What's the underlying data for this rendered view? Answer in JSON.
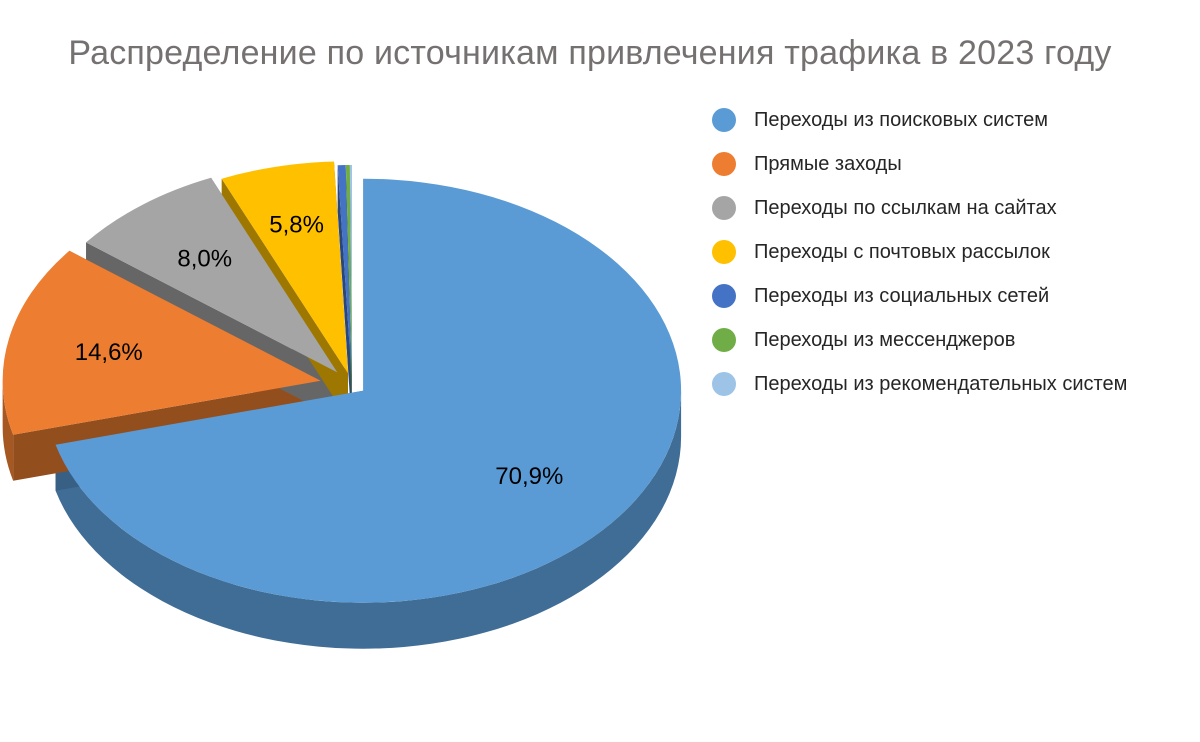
{
  "chart_data": {
    "type": "pie",
    "title": "Распределение по источникам привлечения трафика в 2023 году",
    "series": [
      {
        "name": "",
        "categories": [
          "Переходы из поисковых систем",
          "Прямые заходы",
          "Переходы по ссылкам на сайтах",
          "Переходы с почтовых рассылок",
          "Переходы из социальных сетей",
          "Переходы из мессенджеров",
          "Переходы из рекомендательных систем"
        ],
        "values": [
          70.9,
          14.6,
          8.0,
          5.8,
          0.4,
          0.2,
          0.1
        ],
        "labels": [
          "70,9%",
          "14,6%",
          "8,0%",
          "5,8%",
          "",
          "",
          ""
        ],
        "colors": [
          "#5B9BD5",
          "#ED7D31",
          "#A5A5A5",
          "#FFC000",
          "#4472C4",
          "#70AD47",
          "#9DC3E6"
        ]
      }
    ],
    "legend": "right",
    "style": "3d-exploded"
  }
}
